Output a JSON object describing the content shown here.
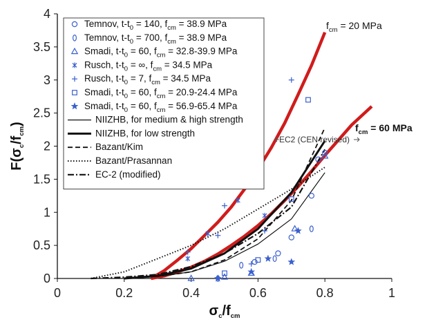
{
  "chart_data": {
    "type": "line",
    "xlim": [
      0,
      1
    ],
    "ylim": [
      0,
      4
    ],
    "x_ticks": [
      "0",
      "0.2",
      "0.4",
      "0.6",
      "0.8",
      "1"
    ],
    "y_ticks": [
      "0",
      "0.5",
      "1",
      "1.5",
      "2",
      "2.5",
      "3",
      "3.5",
      "4"
    ],
    "xlabel": {
      "main": "σ",
      "sub1": "c",
      "mid": "/f",
      "sub2": "cm"
    },
    "ylabel": {
      "pre": "F(σ",
      "sub1": "c",
      "mid": "/f",
      "sub2": "cm",
      "post": ")"
    },
    "grid": false,
    "legend_position": "top-left",
    "legend": [
      {
        "marker": "circle",
        "parts": [
          "Temnov, t-t",
          "0",
          " = 140, f",
          "cm",
          " = 38.9 MPa"
        ]
      },
      {
        "marker": "diamond",
        "parts": [
          "Temnov, t-t",
          "0",
          " = 700, f",
          "cm",
          " = 38.9 MPa"
        ]
      },
      {
        "marker": "triangle",
        "parts": [
          "Smadi, t-t",
          "0",
          " = 60, f",
          "cm",
          " = 32.8-39.9 MPa"
        ]
      },
      {
        "marker": "x",
        "parts": [
          "Rusch, t-t",
          "0",
          " = ∞, f",
          "cm",
          " = 34.5 MPa"
        ]
      },
      {
        "marker": "plus",
        "parts": [
          "Rusch, t-t",
          "0",
          " = 7, f",
          "cm",
          " = 34.5 MPa"
        ]
      },
      {
        "marker": "square",
        "parts": [
          "Smadi, t-t",
          "0",
          " = 60, f",
          "cm",
          " = 20.9-24.4 MPa"
        ]
      },
      {
        "marker": "star",
        "parts": [
          "Smadi, t-t",
          "0",
          " = 60, f",
          "cm",
          " = 56.9-65.4 MPa"
        ]
      },
      {
        "line": "thin",
        "label": "NIIZHB, for medium & high strength"
      },
      {
        "line": "thick",
        "label": "NIIZHB, for low strength"
      },
      {
        "line": "dash",
        "label": "Bazant/Kim"
      },
      {
        "line": "dot",
        "label": "Bazant/Prasannan"
      },
      {
        "line": "dashdot",
        "label": "EC-2 (modified)"
      }
    ],
    "annotations": {
      "fcm20": {
        "pre": "f",
        "sub": "cm",
        "post": " = 20 MPa"
      },
      "fcm60": {
        "pre": "f",
        "sub": "cm",
        "post": " = 60 MPa"
      },
      "ec2": "EC2 (CEN revised)"
    },
    "series": [
      {
        "label_ref": "fcm20",
        "style": "red-thick",
        "x": [
          0.28,
          0.32,
          0.36,
          0.4,
          0.44,
          0.48,
          0.52,
          0.56,
          0.6,
          0.64,
          0.68,
          0.72,
          0.76,
          0.8
        ],
        "y": [
          0.0,
          0.12,
          0.28,
          0.45,
          0.65,
          0.85,
          1.08,
          1.35,
          1.65,
          1.98,
          2.35,
          2.78,
          3.22,
          3.72
        ]
      },
      {
        "label_ref": "fcm60",
        "style": "red-thick",
        "x": [
          0.28,
          0.32,
          0.36,
          0.4,
          0.44,
          0.48,
          0.52,
          0.56,
          0.6,
          0.64,
          0.68,
          0.72,
          0.76,
          0.8,
          0.84,
          0.88,
          0.94
        ],
        "y": [
          0.0,
          0.04,
          0.1,
          0.17,
          0.26,
          0.37,
          0.5,
          0.64,
          0.8,
          0.98,
          1.18,
          1.39,
          1.62,
          1.86,
          2.09,
          2.32,
          2.6
        ]
      },
      {
        "name": "NIIZHB, for medium & high strength",
        "style": "thin",
        "x": [
          0.2,
          0.3,
          0.4,
          0.5,
          0.6,
          0.7,
          0.8
        ],
        "y": [
          0.0,
          0.03,
          0.1,
          0.26,
          0.52,
          0.9,
          1.6
        ]
      },
      {
        "name": "NIIZHB, for low strength",
        "style": "thick",
        "x": [
          0.2,
          0.3,
          0.4,
          0.5,
          0.6,
          0.7,
          0.8
        ],
        "y": [
          0.0,
          0.04,
          0.15,
          0.38,
          0.75,
          1.3,
          2.08
        ]
      },
      {
        "name": "Bazant/Kim",
        "style": "dash",
        "x": [
          0.2,
          0.3,
          0.4,
          0.5,
          0.6,
          0.7,
          0.8
        ],
        "y": [
          0.0,
          0.03,
          0.1,
          0.28,
          0.6,
          1.18,
          2.28
        ]
      },
      {
        "name": "Bazant/Prasannan",
        "style": "dot",
        "x": [
          0.1,
          0.2,
          0.3,
          0.4,
          0.5,
          0.6,
          0.7,
          0.8
        ],
        "y": [
          0.0,
          0.1,
          0.3,
          0.5,
          0.75,
          1.05,
          1.35,
          1.68
        ]
      },
      {
        "name": "EC-2 (modified)",
        "style": "dashdot",
        "x": [
          0.1,
          0.2,
          0.3,
          0.4,
          0.5,
          0.6,
          0.7,
          0.8
        ],
        "y": [
          0.0,
          0.02,
          0.06,
          0.18,
          0.38,
          0.68,
          1.08,
          1.95
        ]
      }
    ],
    "points": [
      {
        "marker": "circle",
        "x": 0.7,
        "y": 0.62
      },
      {
        "marker": "circle",
        "x": 0.76,
        "y": 1.25
      },
      {
        "marker": "circle",
        "x": 0.8,
        "y": 1.9
      },
      {
        "marker": "circle",
        "x": 0.78,
        "y": 1.8
      },
      {
        "marker": "circle",
        "x": 0.59,
        "y": 0.25
      },
      {
        "marker": "circle",
        "x": 0.66,
        "y": 0.38
      },
      {
        "marker": "diamond",
        "x": 0.55,
        "y": 0.2
      },
      {
        "marker": "diamond",
        "x": 0.65,
        "y": 0.3
      },
      {
        "marker": "diamond",
        "x": 0.76,
        "y": 0.75
      },
      {
        "marker": "diamond",
        "x": 0.48,
        "y": 0.0
      },
      {
        "marker": "triangle",
        "x": 0.4,
        "y": 0.0
      },
      {
        "marker": "triangle",
        "x": 0.5,
        "y": 0.02
      },
      {
        "marker": "triangle",
        "x": 0.58,
        "y": 0.08
      },
      {
        "marker": "triangle",
        "x": 0.71,
        "y": 0.75
      },
      {
        "marker": "triangle",
        "x": 0.8,
        "y": 1.85
      },
      {
        "marker": "x",
        "x": 0.39,
        "y": 0.3
      },
      {
        "marker": "x",
        "x": 0.45,
        "y": 0.68
      },
      {
        "marker": "x",
        "x": 0.54,
        "y": 1.18
      },
      {
        "marker": "x",
        "x": 0.54,
        "y": 1.75
      },
      {
        "marker": "x",
        "x": 0.62,
        "y": 0.95
      },
      {
        "marker": "plus",
        "x": 0.39,
        "y": 0.4
      },
      {
        "marker": "plus",
        "x": 0.48,
        "y": 0.65
      },
      {
        "marker": "plus",
        "x": 0.5,
        "y": 1.1
      },
      {
        "marker": "plus",
        "x": 0.55,
        "y": 1.4
      },
      {
        "marker": "plus",
        "x": 0.58,
        "y": 0.22
      },
      {
        "marker": "plus",
        "x": 0.62,
        "y": 0.72
      },
      {
        "marker": "plus",
        "x": 0.7,
        "y": 3.0
      },
      {
        "marker": "square",
        "x": 0.5,
        "y": 0.08
      },
      {
        "marker": "square",
        "x": 0.6,
        "y": 0.28
      },
      {
        "marker": "square",
        "x": 0.7,
        "y": 1.2
      },
      {
        "marker": "square",
        "x": 0.75,
        "y": 2.7
      },
      {
        "marker": "star",
        "x": 0.48,
        "y": 0.0
      },
      {
        "marker": "star",
        "x": 0.58,
        "y": 0.1
      },
      {
        "marker": "star",
        "x": 0.63,
        "y": 0.3
      },
      {
        "marker": "star",
        "x": 0.7,
        "y": 0.25
      },
      {
        "marker": "star",
        "x": 0.72,
        "y": 0.72
      }
    ],
    "colors": {
      "curve_red": "#d01c1c",
      "marker_blue": "#3a5fcd",
      "black": "#111111"
    }
  }
}
